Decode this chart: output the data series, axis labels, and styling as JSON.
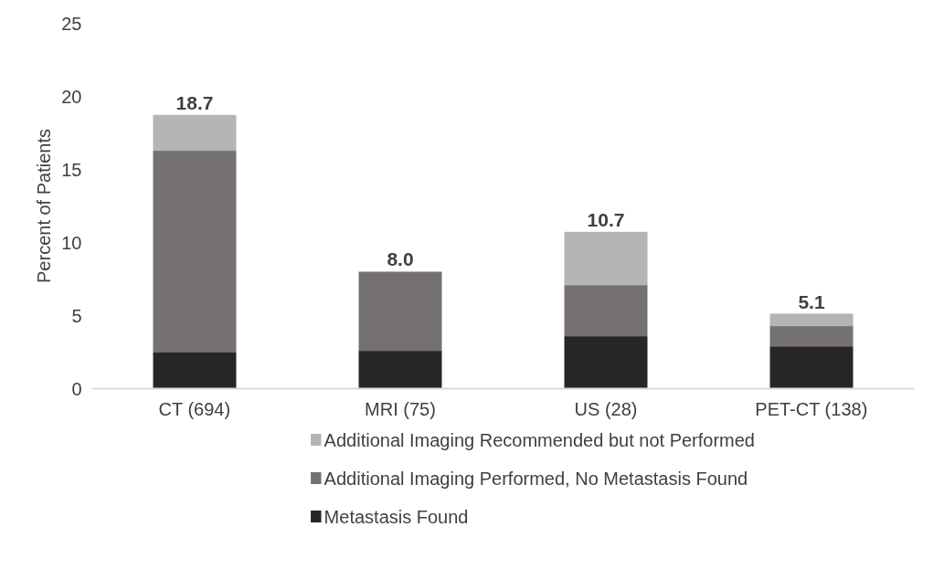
{
  "chart_data": {
    "type": "bar",
    "stacked": true,
    "ylabel": "Percent of Patients",
    "categories": [
      "CT (694)",
      "MRI (75)",
      "US (28)",
      "PET-CT (138)"
    ],
    "series": [
      {
        "name": "Metastasis Found",
        "color": "#262626",
        "values": [
          2.5,
          2.6,
          3.6,
          2.9
        ]
      },
      {
        "name": "Additional Imaging Performed, No Metastasis Found",
        "color": "#767171",
        "values": [
          13.8,
          5.4,
          3.5,
          1.4
        ]
      },
      {
        "name": "Additional Imaging Recommended but not Performed",
        "color": "#b4b4b4",
        "values": [
          2.4,
          0,
          3.6,
          0.8
        ]
      }
    ],
    "totals": [
      "18.7",
      "8.0",
      "10.7",
      "5.1"
    ],
    "ylim": [
      0,
      25
    ],
    "yticks": [
      0,
      5,
      10,
      15,
      20,
      25
    ],
    "grid": false,
    "legend": "bottom"
  }
}
